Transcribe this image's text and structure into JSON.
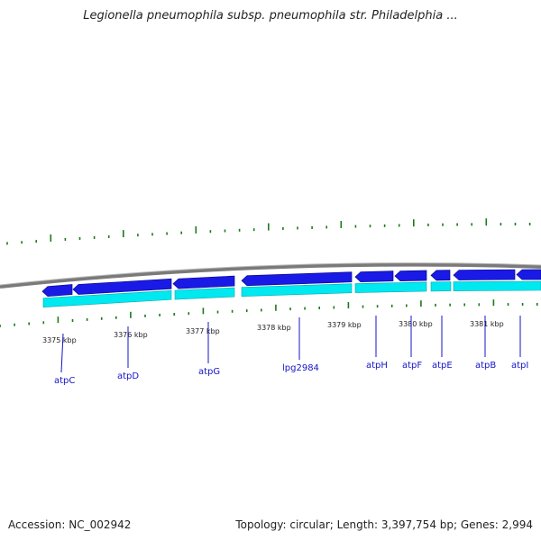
{
  "title": "Legionella pneumophila subsp. pneumophila str. Philadelphia ...",
  "accession": "Accession: NC_002942",
  "stats": "Topology: circular; Length: 3,397,754 bp; Genes: 2,994",
  "scale_labels": [
    "3375 kbp",
    "3376 kbp",
    "3377 kbp",
    "3378 kbp",
    "3379 kbp",
    "3380 kbp",
    "3381 kbp"
  ],
  "genes": [
    "atpC",
    "atpD",
    "atpG",
    "lpg2984",
    "atpH",
    "atpF",
    "atpE",
    "atpB",
    "atpI"
  ],
  "colors": {
    "backbone": "#7a7a7a",
    "gene_forward": "#1a1ae6",
    "gene_shadow": "#00e8f0",
    "tick": "#1a7a1a",
    "gene_label": "#1414c8"
  }
}
